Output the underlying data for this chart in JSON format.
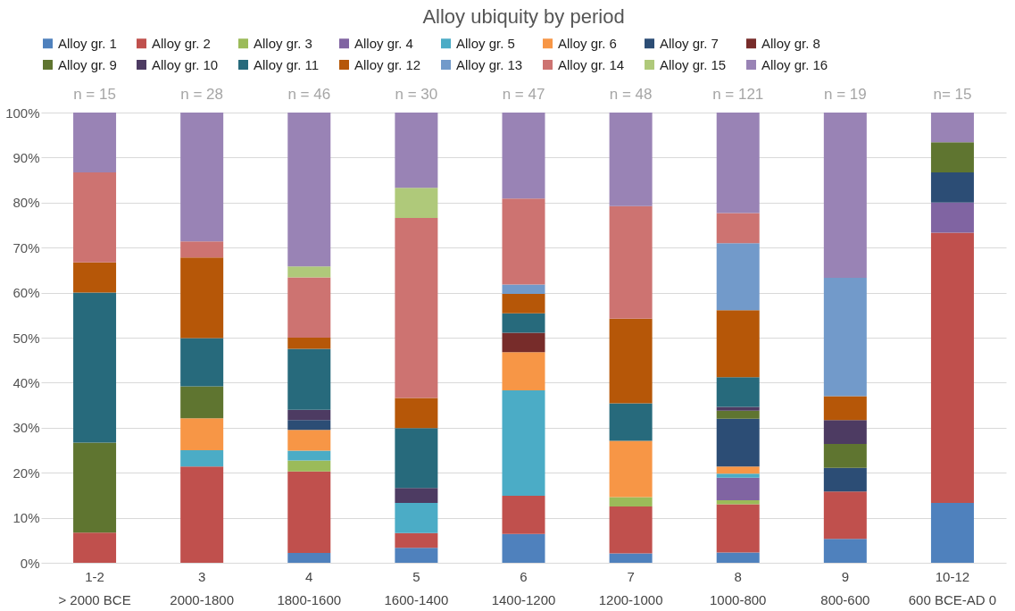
{
  "chart_data": {
    "type": "bar",
    "title": "Alloy ubiquity by period",
    "stacked": true,
    "categories": [
      "1-2\n> 2000 BCE",
      "3\n2000-1800",
      "4\n1800-1600",
      "5\n1600-1400",
      "6\n1400-1200",
      "7\n1200-1000",
      "8\n1000-800",
      "9\n800-600",
      "10-12\n600 BCE-AD 0"
    ],
    "series": [
      {
        "name": "Alloy gr. 1",
        "color": "#4f81bd",
        "values": [
          null,
          null,
          2.2,
          3.3,
          6.4,
          2.1,
          2.3,
          5.3,
          13.3
        ]
      },
      {
        "name": "Alloy gr. 2",
        "color": "#c0504d",
        "values": [
          6.7,
          21.4,
          18.1,
          3.3,
          8.5,
          10.4,
          10.7,
          10.5,
          60
        ]
      },
      {
        "name": "Alloy gr. 3",
        "color": "#9bbb59",
        "values": [
          null,
          null,
          2.4,
          null,
          null,
          2.1,
          0.9,
          null,
          null
        ]
      },
      {
        "name": "Alloy gr. 4",
        "color": "#8064a2",
        "values": [
          null,
          null,
          null,
          null,
          null,
          null,
          5.0,
          null,
          6.7
        ]
      },
      {
        "name": "Alloy gr. 5",
        "color": "#4bacc6",
        "values": [
          null,
          3.6,
          2.2,
          6.7,
          23.4,
          null,
          0.9,
          null,
          null
        ]
      },
      {
        "name": "Alloy gr. 6",
        "color": "#f79646",
        "values": [
          null,
          7.1,
          4.6,
          null,
          8.5,
          12.5,
          1.6,
          null,
          null
        ]
      },
      {
        "name": "Alloy gr. 7",
        "color": "#2c4d75",
        "values": [
          null,
          null,
          2.2,
          null,
          null,
          null,
          10.6,
          5.3,
          6.7
        ]
      },
      {
        "name": "Alloy gr. 8",
        "color": "#772c2a",
        "values": [
          null,
          null,
          null,
          null,
          4.3,
          null,
          null,
          null,
          null
        ]
      },
      {
        "name": "Alloy gr. 9",
        "color": "#5f7530",
        "values": [
          20,
          7.1,
          null,
          null,
          null,
          null,
          1.8,
          5.3,
          6.7
        ]
      },
      {
        "name": "Alloy gr. 10",
        "color": "#4d3b62",
        "values": [
          null,
          null,
          2.3,
          3.3,
          null,
          null,
          0.8,
          5.3,
          null
        ]
      },
      {
        "name": "Alloy gr. 11",
        "color": "#276a7c",
        "values": [
          33.3,
          10.7,
          13.5,
          13.3,
          4.3,
          8.3,
          6.6,
          null,
          null
        ]
      },
      {
        "name": "Alloy gr. 12",
        "color": "#b65708",
        "values": [
          6.7,
          17.9,
          2.5,
          6.7,
          4.3,
          18.8,
          14.9,
          5.3,
          null
        ]
      },
      {
        "name": "Alloy gr. 13",
        "color": "#729aca",
        "values": [
          null,
          null,
          null,
          null,
          2.1,
          null,
          14.9,
          26.3,
          null
        ]
      },
      {
        "name": "Alloy gr. 14",
        "color": "#cd7371",
        "values": [
          20,
          3.6,
          13.4,
          40,
          19.1,
          25,
          6.7,
          null,
          null
        ]
      },
      {
        "name": "Alloy gr. 15",
        "color": "#afc97a",
        "values": [
          null,
          null,
          2.4,
          6.7,
          null,
          null,
          null,
          null,
          null
        ]
      },
      {
        "name": "Alloy gr. 16",
        "color": "#9983b5",
        "values": [
          13.3,
          28.6,
          34.2,
          16.7,
          19.1,
          20.8,
          22.3,
          36.7,
          6.6
        ]
      }
    ],
    "ylim": [
      0,
      100
    ],
    "yticks": [
      {
        "value": 0,
        "label": "0%"
      },
      {
        "value": 10,
        "label": "10%"
      },
      {
        "value": 20,
        "label": "20%"
      },
      {
        "value": 30,
        "label": "30%"
      },
      {
        "value": 40,
        "label": "40%"
      },
      {
        "value": 50,
        "label": "50%"
      },
      {
        "value": 60,
        "label": "60%"
      },
      {
        "value": 70,
        "label": "70%"
      },
      {
        "value": 80,
        "label": "80%"
      },
      {
        "value": 90,
        "label": "90%"
      },
      {
        "value": 100,
        "label": "100%"
      }
    ],
    "grid": "y",
    "legend": "top",
    "annotations": [
      {
        "text": "n = 15",
        "x": "1-2\n> 2000 BCE",
        "y": 100
      },
      {
        "text": "n = 28",
        "x": "3\n2000-1800",
        "y": 100
      },
      {
        "text": "n = 46",
        "x": "4\n1800-1600",
        "y": 100
      },
      {
        "text": "n = 30",
        "x": "5\n1600-1400",
        "y": 100
      },
      {
        "text": "n = 47",
        "x": "6\n1400-1200",
        "y": 100
      },
      {
        "text": "n = 48",
        "x": "7\n1200-1000",
        "y": 100
      },
      {
        "text": "n = 121",
        "x": "8\n1000-800",
        "y": 100
      },
      {
        "text": "n = 19",
        "x": "9\n800-600",
        "y": 100
      },
      {
        "text": "n= 15",
        "x": "10-12\n600 BCE-AD 0",
        "y": 100
      }
    ]
  }
}
